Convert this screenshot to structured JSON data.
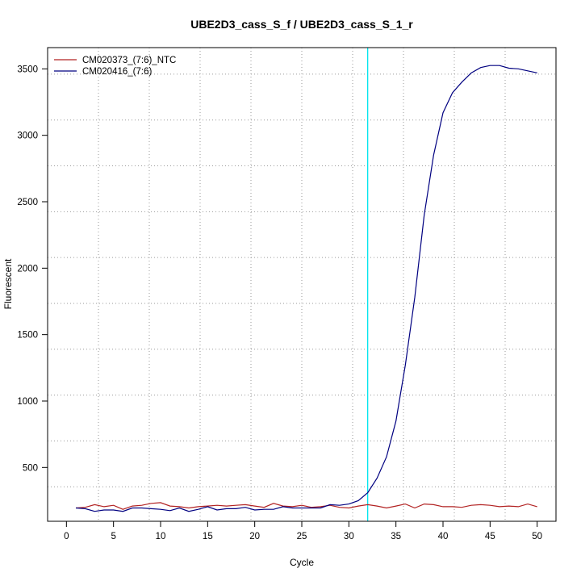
{
  "chart_data": {
    "type": "line",
    "title": "UBE2D3_cass_S_f / UBE2D3_cass_S_1_r",
    "xlabel": "Cycle",
    "ylabel": "Fluorescent",
    "xlim": [
      -2,
      52
    ],
    "ylim": [
      95,
      3660
    ],
    "x_ticks": [
      0,
      5,
      10,
      15,
      20,
      25,
      30,
      35,
      40,
      45,
      50
    ],
    "y_ticks": [
      500,
      1000,
      1500,
      2000,
      2500,
      3000,
      3500
    ],
    "grid": true,
    "legend_position": "top-left",
    "threshold": {
      "x": 32.0,
      "color": "#00e5ee"
    },
    "x": [
      1,
      2,
      3,
      4,
      5,
      6,
      7,
      8,
      9,
      10,
      11,
      12,
      13,
      14,
      15,
      16,
      17,
      18,
      19,
      20,
      21,
      22,
      23,
      24,
      25,
      26,
      27,
      28,
      29,
      30,
      31,
      32,
      33,
      34,
      35,
      36,
      37,
      38,
      39,
      40,
      41,
      42,
      43,
      44,
      45,
      46,
      47,
      48,
      49,
      50
    ],
    "series": [
      {
        "name": "CM020373_(7:6)_NTC",
        "color": "#b22222",
        "values": [
          195,
          200,
          220,
          205,
          215,
          185,
          210,
          215,
          230,
          235,
          210,
          205,
          195,
          205,
          210,
          215,
          210,
          215,
          220,
          210,
          200,
          230,
          210,
          205,
          215,
          200,
          205,
          215,
          200,
          195,
          210,
          220,
          210,
          195,
          210,
          225,
          195,
          225,
          220,
          205,
          205,
          200,
          215,
          220,
          215,
          205,
          210,
          205,
          225,
          205
        ]
      },
      {
        "name": "CM020416_(7:6)",
        "color": "#000080",
        "values": [
          195,
          190,
          170,
          180,
          180,
          170,
          195,
          195,
          190,
          185,
          175,
          195,
          170,
          185,
          205,
          180,
          190,
          190,
          200,
          180,
          185,
          185,
          205,
          195,
          195,
          195,
          195,
          220,
          215,
          225,
          250,
          310,
          420,
          580,
          850,
          1270,
          1780,
          2400,
          2850,
          3170,
          3320,
          3400,
          3470,
          3510,
          3525,
          3525,
          3505,
          3500,
          3485,
          3470
        ]
      }
    ]
  }
}
